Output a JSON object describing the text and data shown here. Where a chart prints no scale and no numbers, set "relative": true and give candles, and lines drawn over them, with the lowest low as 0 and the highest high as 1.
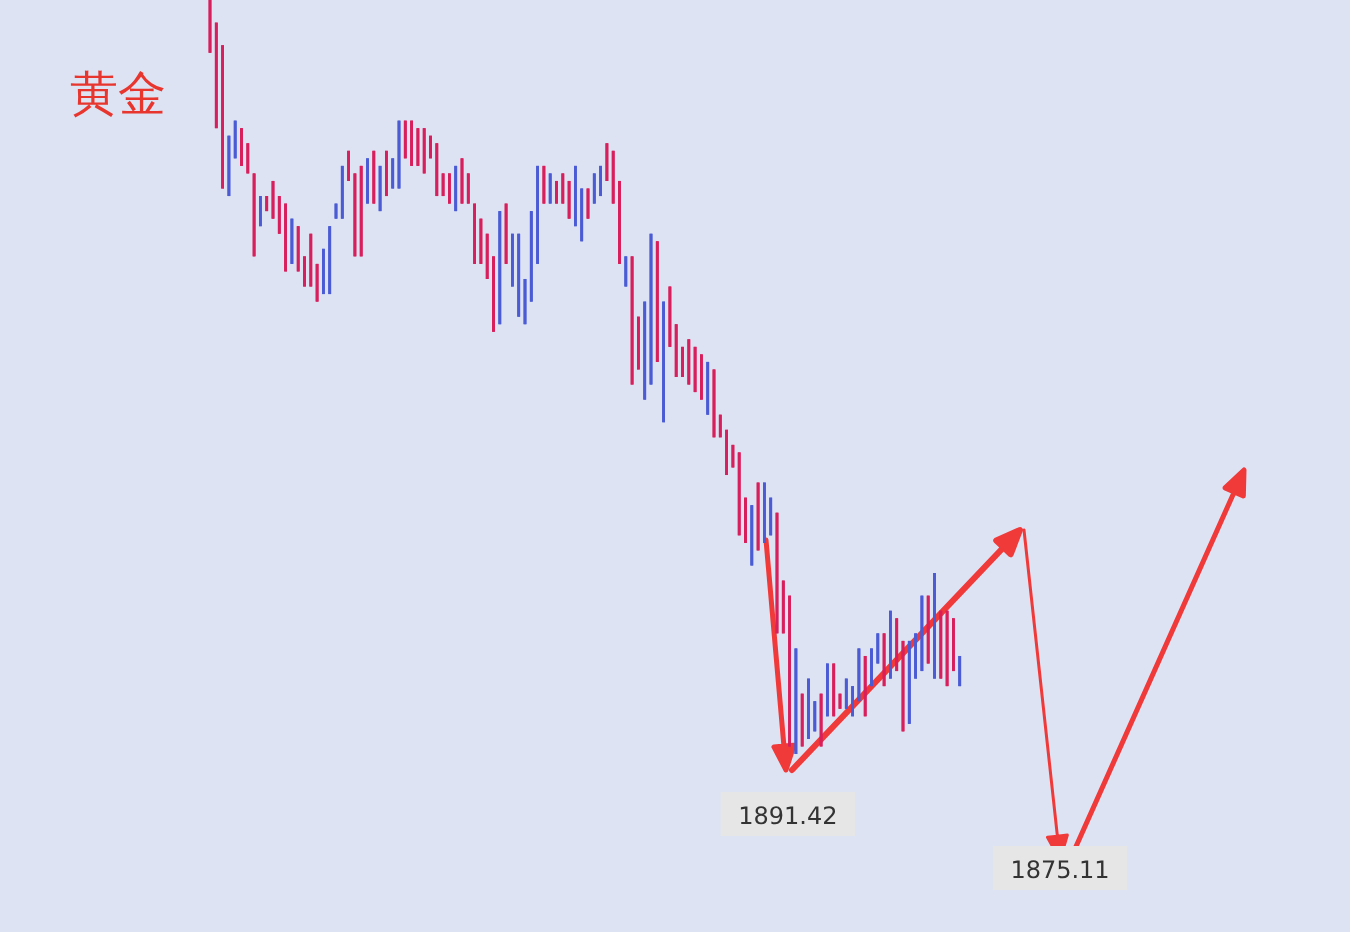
{
  "chart_data": {
    "type": "candlestick",
    "title": "黄金",
    "relative": true,
    "categories": [
      null,
      null,
      null,
      null,
      null,
      null,
      null,
      null,
      null,
      null,
      null,
      null,
      null,
      null,
      null,
      null,
      null,
      null,
      null,
      null,
      null,
      null,
      null,
      null,
      null,
      null,
      null,
      null,
      null,
      null,
      null,
      null,
      null,
      null,
      null,
      null,
      null,
      null,
      null,
      null,
      null,
      null,
      null,
      null,
      null,
      null,
      null,
      null,
      null,
      null,
      null,
      null,
      null,
      null,
      null,
      null,
      null,
      null,
      null,
      null,
      null,
      null,
      null,
      null,
      null,
      null,
      null,
      null,
      null,
      null,
      null,
      null,
      null,
      null,
      null,
      null,
      null,
      null,
      null,
      null,
      null,
      null,
      null,
      null,
      null,
      null,
      null,
      null,
      null,
      null,
      null,
      null,
      null,
      null,
      null,
      null,
      null,
      null,
      null,
      null,
      null,
      null,
      null,
      null,
      null,
      null,
      null,
      null,
      null,
      null,
      null,
      null,
      null,
      null,
      null,
      null,
      null,
      null,
      null,
      null
    ],
    "ohlc": [
      [
        0.93,
        1.0,
        0.93,
        1.0
      ],
      [
        0.83,
        0.97,
        0.83,
        0.97
      ],
      [
        0.75,
        0.94,
        0.75,
        0.94
      ],
      [
        0.82,
        0.82,
        0.74,
        0.74
      ],
      [
        0.84,
        0.84,
        0.79,
        0.79
      ],
      [
        0.78,
        0.83,
        0.78,
        0.83
      ],
      [
        0.77,
        0.81,
        0.77,
        0.81
      ],
      [
        0.66,
        0.77,
        0.66,
        0.77
      ],
      [
        0.74,
        0.74,
        0.7,
        0.7
      ],
      [
        0.72,
        0.74,
        0.72,
        0.74
      ],
      [
        0.71,
        0.76,
        0.71,
        0.76
      ],
      [
        0.69,
        0.74,
        0.69,
        0.74
      ],
      [
        0.64,
        0.73,
        0.64,
        0.73
      ],
      [
        0.71,
        0.71,
        0.65,
        0.65
      ],
      [
        0.64,
        0.7,
        0.64,
        0.7
      ],
      [
        0.62,
        0.66,
        0.62,
        0.66
      ],
      [
        0.62,
        0.69,
        0.62,
        0.69
      ],
      [
        0.6,
        0.65,
        0.6,
        0.65
      ],
      [
        0.67,
        0.67,
        0.61,
        0.61
      ],
      [
        0.7,
        0.7,
        0.61,
        0.61
      ],
      [
        0.73,
        0.73,
        0.71,
        0.71
      ],
      [
        0.78,
        0.78,
        0.71,
        0.71
      ],
      [
        0.76,
        0.8,
        0.76,
        0.8
      ],
      [
        0.66,
        0.77,
        0.66,
        0.77
      ],
      [
        0.66,
        0.78,
        0.66,
        0.78
      ],
      [
        0.79,
        0.79,
        0.73,
        0.73
      ],
      [
        0.73,
        0.8,
        0.73,
        0.8
      ],
      [
        0.78,
        0.78,
        0.72,
        0.72
      ],
      [
        0.74,
        0.8,
        0.74,
        0.8
      ],
      [
        0.79,
        0.79,
        0.75,
        0.75
      ],
      [
        0.84,
        0.84,
        0.75,
        0.75
      ],
      [
        0.79,
        0.84,
        0.79,
        0.84
      ],
      [
        0.78,
        0.84,
        0.78,
        0.84
      ],
      [
        0.78,
        0.83,
        0.78,
        0.83
      ],
      [
        0.77,
        0.83,
        0.77,
        0.83
      ],
      [
        0.79,
        0.82,
        0.79,
        0.82
      ],
      [
        0.74,
        0.81,
        0.74,
        0.81
      ],
      [
        0.74,
        0.77,
        0.74,
        0.77
      ],
      [
        0.73,
        0.77,
        0.73,
        0.77
      ],
      [
        0.78,
        0.78,
        0.72,
        0.72
      ],
      [
        0.73,
        0.79,
        0.73,
        0.79
      ],
      [
        0.73,
        0.77,
        0.73,
        0.77
      ],
      [
        0.65,
        0.73,
        0.65,
        0.73
      ],
      [
        0.65,
        0.71,
        0.65,
        0.71
      ],
      [
        0.63,
        0.69,
        0.63,
        0.69
      ],
      [
        0.56,
        0.66,
        0.56,
        0.66
      ],
      [
        0.72,
        0.72,
        0.57,
        0.57
      ],
      [
        0.65,
        0.73,
        0.65,
        0.73
      ],
      [
        0.69,
        0.69,
        0.62,
        0.62
      ],
      [
        0.69,
        0.69,
        0.58,
        0.58
      ],
      [
        0.63,
        0.63,
        0.57,
        0.57
      ],
      [
        0.72,
        0.72,
        0.6,
        0.6
      ],
      [
        0.78,
        0.78,
        0.65,
        0.65
      ],
      [
        0.73,
        0.78,
        0.73,
        0.78
      ],
      [
        0.77,
        0.77,
        0.73,
        0.73
      ],
      [
        0.73,
        0.76,
        0.73,
        0.76
      ],
      [
        0.73,
        0.77,
        0.73,
        0.77
      ],
      [
        0.71,
        0.76,
        0.71,
        0.76
      ],
      [
        0.78,
        0.78,
        0.7,
        0.7
      ],
      [
        0.75,
        0.75,
        0.68,
        0.68
      ],
      [
        0.71,
        0.75,
        0.71,
        0.75
      ],
      [
        0.77,
        0.77,
        0.73,
        0.73
      ],
      [
        0.78,
        0.78,
        0.74,
        0.74
      ],
      [
        0.76,
        0.81,
        0.76,
        0.81
      ],
      [
        0.73,
        0.8,
        0.73,
        0.8
      ],
      [
        0.65,
        0.76,
        0.65,
        0.76
      ],
      [
        0.66,
        0.66,
        0.62,
        0.62
      ],
      [
        0.49,
        0.66,
        0.49,
        0.66
      ],
      [
        0.51,
        0.58,
        0.51,
        0.58
      ],
      [
        0.6,
        0.6,
        0.47,
        0.47
      ],
      [
        0.69,
        0.69,
        0.49,
        0.49
      ],
      [
        0.52,
        0.68,
        0.52,
        0.68
      ],
      [
        0.6,
        0.6,
        0.44,
        0.44
      ],
      [
        0.54,
        0.62,
        0.54,
        0.62
      ],
      [
        0.5,
        0.57,
        0.5,
        0.57
      ],
      [
        0.5,
        0.54,
        0.5,
        0.54
      ],
      [
        0.49,
        0.55,
        0.49,
        0.55
      ],
      [
        0.48,
        0.54,
        0.48,
        0.54
      ],
      [
        0.47,
        0.53,
        0.47,
        0.53
      ],
      [
        0.52,
        0.52,
        0.45,
        0.45
      ],
      [
        0.42,
        0.51,
        0.42,
        0.51
      ],
      [
        0.42,
        0.45,
        0.42,
        0.45
      ],
      [
        0.37,
        0.43,
        0.37,
        0.43
      ],
      [
        0.38,
        0.41,
        0.38,
        0.41
      ],
      [
        0.29,
        0.4,
        0.29,
        0.4
      ],
      [
        0.28,
        0.34,
        0.28,
        0.34
      ],
      [
        0.33,
        0.33,
        0.25,
        0.25
      ],
      [
        0.27,
        0.36,
        0.27,
        0.36
      ],
      [
        0.36,
        0.36,
        0.28,
        0.28
      ],
      [
        0.34,
        0.34,
        0.29,
        0.29
      ],
      [
        0.16,
        0.32,
        0.16,
        0.32
      ],
      [
        0.16,
        0.23,
        0.16,
        0.23
      ],
      [
        0.01,
        0.21,
        0.01,
        0.21
      ],
      [
        0.14,
        0.14,
        0,
        0
      ],
      [
        0.01,
        0.08,
        0.01,
        0.08
      ],
      [
        0.1,
        0.1,
        0.02,
        0.02
      ],
      [
        0.07,
        0.07,
        0.03,
        0.03
      ],
      [
        0.01,
        0.08,
        0.01,
        0.08
      ],
      [
        0.12,
        0.12,
        0.05,
        0.05
      ],
      [
        0.05,
        0.12,
        0.05,
        0.12
      ],
      [
        0.06,
        0.08,
        0.06,
        0.08
      ],
      [
        0.1,
        0.1,
        0.06,
        0.06
      ],
      [
        0.09,
        0.09,
        0.05,
        0.05
      ],
      [
        0.14,
        0.14,
        0.07,
        0.07
      ],
      [
        0.05,
        0.13,
        0.05,
        0.13
      ],
      [
        0.14,
        0.14,
        0.09,
        0.09
      ],
      [
        0.16,
        0.16,
        0.12,
        0.12
      ],
      [
        0.09,
        0.16,
        0.09,
        0.16
      ],
      [
        0.19,
        0.19,
        0.1,
        0.1
      ],
      [
        0.11,
        0.18,
        0.11,
        0.18
      ],
      [
        0.03,
        0.15,
        0.03,
        0.15
      ],
      [
        0.15,
        0.15,
        0.04,
        0.04
      ],
      [
        0.16,
        0.16,
        0.1,
        0.1
      ],
      [
        0.21,
        0.21,
        0.11,
        0.11
      ],
      [
        0.12,
        0.21,
        0.12,
        0.21
      ],
      [
        0.24,
        0.24,
        0.1,
        0.1
      ],
      [
        0.1,
        0.19,
        0.1,
        0.19
      ],
      [
        0.09,
        0.19,
        0.09,
        0.19
      ],
      [
        0.11,
        0.18,
        0.11,
        0.18
      ],
      [
        0.13,
        0.13,
        0.09,
        0.09
      ]
    ],
    "colors": [
      "#d81e5b",
      "#d81e5b",
      "#d81e5b",
      "#4a5bd4",
      "#4a5bd4",
      "#d81e5b",
      "#d81e5b",
      "#d81e5b",
      "#4a5bd4",
      "#d81e5b",
      "#d81e5b",
      "#d81e5b",
      "#d81e5b",
      "#4a5bd4",
      "#d81e5b",
      "#d81e5b",
      "#d81e5b",
      "#d81e5b",
      "#4a5bd4",
      "#4a5bd4",
      "#4a5bd4",
      "#4a5bd4",
      "#d81e5b",
      "#d81e5b",
      "#d81e5b",
      "#4a5bd4",
      "#d81e5b",
      "#4a5bd4",
      "#d81e5b",
      "#4a5bd4",
      "#4a5bd4",
      "#d81e5b",
      "#d81e5b",
      "#d81e5b",
      "#d81e5b",
      "#d81e5b",
      "#d81e5b",
      "#d81e5b",
      "#d81e5b",
      "#4a5bd4",
      "#d81e5b",
      "#d81e5b",
      "#d81e5b",
      "#d81e5b",
      "#d81e5b",
      "#d81e5b",
      "#4a5bd4",
      "#d81e5b",
      "#4a5bd4",
      "#4a5bd4",
      "#4a5bd4",
      "#4a5bd4",
      "#4a5bd4",
      "#d81e5b",
      "#4a5bd4",
      "#d81e5b",
      "#d81e5b",
      "#d81e5b",
      "#4a5bd4",
      "#4a5bd4",
      "#d81e5b",
      "#4a5bd4",
      "#4a5bd4",
      "#d81e5b",
      "#d81e5b",
      "#d81e5b",
      "#4a5bd4",
      "#d81e5b",
      "#d81e5b",
      "#4a5bd4",
      "#4a5bd4",
      "#d81e5b",
      "#4a5bd4",
      "#d81e5b",
      "#d81e5b",
      "#d81e5b",
      "#d81e5b",
      "#d81e5b",
      "#d81e5b",
      "#4a5bd4",
      "#d81e5b",
      "#d81e5b",
      "#d81e5b",
      "#d81e5b",
      "#d81e5b",
      "#d81e5b",
      "#4a5bd4",
      "#d81e5b",
      "#4a5bd4",
      "#4a5bd4",
      "#d81e5b",
      "#d81e5b",
      "#d81e5b",
      "#4a5bd4",
      "#d81e5b",
      "#4a5bd4",
      "#4a5bd4",
      "#d81e5b",
      "#4a5bd4",
      "#d81e5b",
      "#d81e5b",
      "#4a5bd4",
      "#4a5bd4",
      "#4a5bd4",
      "#d81e5b",
      "#4a5bd4",
      "#4a5bd4",
      "#d81e5b",
      "#4a5bd4",
      "#d81e5b",
      "#d81e5b",
      "#4a5bd4",
      "#4a5bd4",
      "#4a5bd4",
      "#d81e5b",
      "#4a5bd4",
      "#d81e5b",
      "#d81e5b",
      "#d81e5b",
      "#4a5bd4"
    ],
    "annotations": [
      "1891.42",
      "1875.11"
    ]
  }
}
